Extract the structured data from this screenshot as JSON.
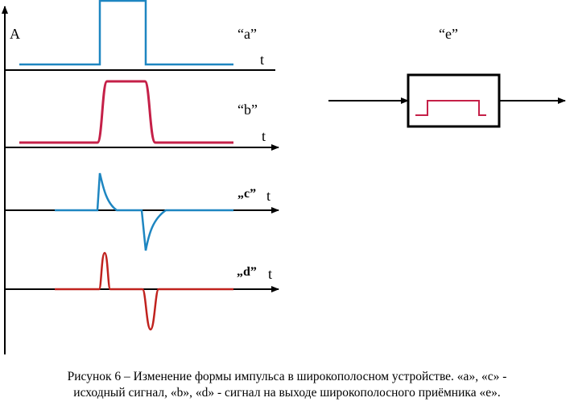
{
  "axes": {
    "y_label": "A",
    "t_label": "t"
  },
  "signals": {
    "a": "“a”",
    "b": "“b”",
    "c": "„c”",
    "d": "„d”"
  },
  "device": {
    "label": "“e”"
  },
  "caption": {
    "line1": "Рисунок 6 – Изменение формы импульса в широкополосном устройстве. «a», «c» -",
    "line2": "исходный сигнал, «b», «d» - сигнал на выходе широкополосного приёмника «e»."
  }
}
